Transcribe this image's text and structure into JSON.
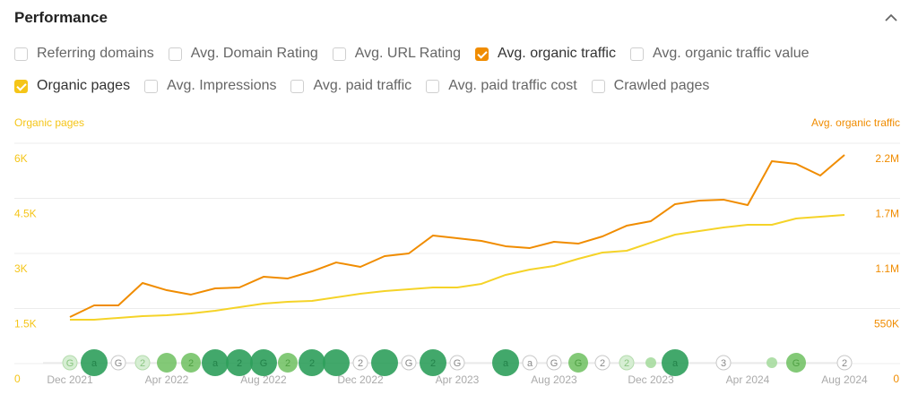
{
  "title": "Performance",
  "options_row1": [
    {
      "label": "Referring domains",
      "checked": false
    },
    {
      "label": "Avg. Domain Rating",
      "checked": false
    },
    {
      "label": "Avg. URL Rating",
      "checked": false
    },
    {
      "label": "Avg. organic traffic",
      "checked": true,
      "color": "#f08c00"
    },
    {
      "label": "Avg. organic traffic value",
      "checked": false
    }
  ],
  "options_row2": [
    {
      "label": "Organic pages",
      "checked": true,
      "color": "#f5c518"
    },
    {
      "label": "Avg. Impressions",
      "checked": false
    },
    {
      "label": "Avg. paid traffic",
      "checked": false
    },
    {
      "label": "Avg. paid traffic cost",
      "checked": false
    },
    {
      "label": "Crawled pages",
      "checked": false
    }
  ],
  "chart_data": {
    "type": "line",
    "x": [
      "Dec 2021",
      "Jan 2022",
      "Feb 2022",
      "Mar 2022",
      "Apr 2022",
      "May 2022",
      "Jun 2022",
      "Jul 2022",
      "Aug 2022",
      "Sep 2022",
      "Oct 2022",
      "Nov 2022",
      "Dec 2022",
      "Jan 2023",
      "Feb 2023",
      "Mar 2023",
      "Apr 2023",
      "May 2023",
      "Jun 2023",
      "Jul 2023",
      "Aug 2023",
      "Sep 2023",
      "Oct 2023",
      "Nov 2023",
      "Dec 2023",
      "Jan 2024",
      "Feb 2024",
      "Mar 2024",
      "Apr 2024",
      "May 2024",
      "Jun 2024",
      "Jul 2024",
      "Aug 2024"
    ],
    "x_tick_labels": [
      "Dec 2021",
      "Apr 2022",
      "Aug 2022",
      "Dec 2022",
      "Apr 2023",
      "Aug 2023",
      "Dec 2023",
      "Apr 2024",
      "Aug 2024"
    ],
    "left_axis": {
      "label": "Organic pages",
      "ticks": [
        "0",
        "1.5K",
        "3K",
        "4.5K",
        "6K"
      ],
      "range": [
        0,
        6000
      ],
      "color": "#f5c518"
    },
    "right_axis": {
      "label": "Avg. organic traffic",
      "ticks": [
        "0",
        "550K",
        "1.1M",
        "1.7M",
        "2.2M"
      ],
      "range": [
        0,
        2200000
      ],
      "color": "#f08c00"
    },
    "grid": true,
    "series": [
      {
        "name": "Avg. organic traffic",
        "axis": "right",
        "color": "#f08c00",
        "values": [
          465000,
          581000,
          581000,
          805000,
          733000,
          689000,
          751000,
          760000,
          867000,
          850000,
          921000,
          1010000,
          966000,
          1073000,
          1100000,
          1279000,
          1252000,
          1225000,
          1172000,
          1154000,
          1216000,
          1198000,
          1270000,
          1377000,
          1422000,
          1592000,
          1628000,
          1637000,
          1583000,
          2021000,
          1994000,
          1878000,
          2084000
        ]
      },
      {
        "name": "Organic pages",
        "axis": "left",
        "color": "#f5d328",
        "values": [
          1195,
          1195,
          1244,
          1293,
          1317,
          1366,
          1439,
          1537,
          1634,
          1683,
          1707,
          1805,
          1902,
          1976,
          2024,
          2073,
          2073,
          2171,
          2415,
          2561,
          2659,
          2854,
          3024,
          3073,
          3293,
          3512,
          3610,
          3707,
          3780,
          3780,
          3951,
          4000,
          4049
        ]
      }
    ],
    "events": [
      {
        "month": "Dec 2021",
        "label": "G",
        "kind": "faded"
      },
      {
        "month": "Jan 2022",
        "label": "a",
        "kind": "major"
      },
      {
        "month": "Feb 2022",
        "label": "G",
        "kind": "outline"
      },
      {
        "month": "Mar 2022",
        "label": "2",
        "kind": "faded"
      },
      {
        "month": "Apr 2022",
        "label": "",
        "kind": "medium"
      },
      {
        "month": "May 2022",
        "label": "2",
        "kind": "medium"
      },
      {
        "month": "Jun 2022",
        "label": "a",
        "kind": "major"
      },
      {
        "month": "Jul 2022",
        "label": "2",
        "kind": "major"
      },
      {
        "month": "Aug 2022",
        "label": "G",
        "kind": "major"
      },
      {
        "month": "Sep 2022",
        "label": "2",
        "kind": "medium"
      },
      {
        "month": "Oct 2022",
        "label": "2",
        "kind": "major"
      },
      {
        "month": "Nov 2022",
        "label": "",
        "kind": "major"
      },
      {
        "month": "Dec 2022",
        "label": "2",
        "kind": "outline"
      },
      {
        "month": "Jan 2023",
        "label": "",
        "kind": "major"
      },
      {
        "month": "Feb 2023",
        "label": "G",
        "kind": "outline"
      },
      {
        "month": "Mar 2023",
        "label": "2",
        "kind": "major"
      },
      {
        "month": "Apr 2023",
        "label": "G",
        "kind": "outline"
      },
      {
        "month": "Jun 2023",
        "label": "a",
        "kind": "major"
      },
      {
        "month": "Jul 2023",
        "label": "a",
        "kind": "outline"
      },
      {
        "month": "Aug 2023",
        "label": "G",
        "kind": "outline"
      },
      {
        "month": "Sep 2023",
        "label": "G",
        "kind": "medium"
      },
      {
        "month": "Oct 2023",
        "label": "2",
        "kind": "outline"
      },
      {
        "month": "Nov 2023",
        "label": "2",
        "kind": "faded"
      },
      {
        "month": "Dec 2023",
        "label": "",
        "kind": "small"
      },
      {
        "month": "Jan 2024",
        "label": "a",
        "kind": "major"
      },
      {
        "month": "Mar 2024",
        "label": "3",
        "kind": "outline"
      },
      {
        "month": "May 2024",
        "label": "",
        "kind": "small"
      },
      {
        "month": "Jun 2024",
        "label": "G",
        "kind": "medium"
      },
      {
        "month": "Aug 2024",
        "label": "2",
        "kind": "outline"
      }
    ]
  }
}
